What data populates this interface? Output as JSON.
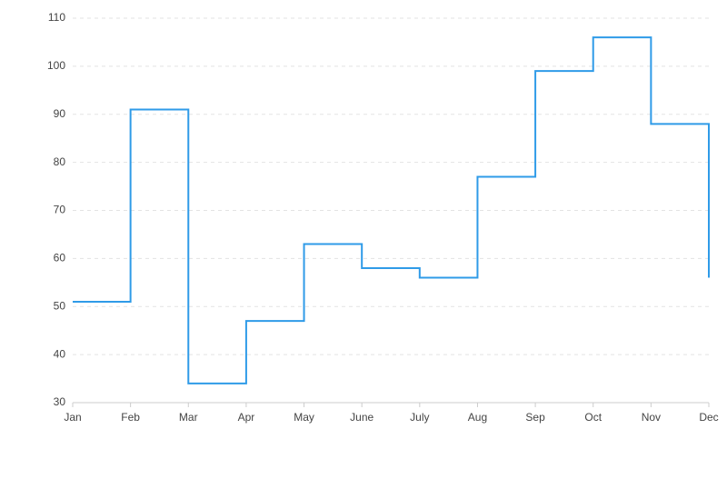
{
  "chart_data": {
    "type": "line",
    "step": "after",
    "categories": [
      "Jan",
      "Feb",
      "Mar",
      "Apr",
      "May",
      "June",
      "July",
      "Aug",
      "Sep",
      "Oct",
      "Nov",
      "Dec"
    ],
    "values": [
      51,
      91,
      34,
      47,
      63,
      58,
      56,
      77,
      99,
      106,
      88,
      56
    ],
    "color": "#2f9be8",
    "ylim": [
      30,
      110
    ],
    "yticks": [
      30,
      40,
      50,
      60,
      70,
      80,
      90,
      100,
      110
    ],
    "grid": true
  }
}
